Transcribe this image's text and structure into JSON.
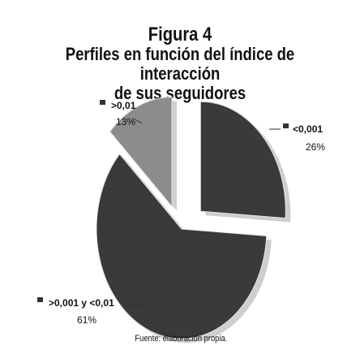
{
  "figure_label": "Figura 4",
  "title_lines": [
    "Perfiles en función del índice de interacción",
    "de sus seguidores"
  ],
  "source": "Fuente: elaboración propia.",
  "chart_data": {
    "type": "pie",
    "exploded": true,
    "shadow": true,
    "slices": [
      {
        "label": "<0,001",
        "value": 26,
        "value_label": "26%",
        "color": "#3a3a3a"
      },
      {
        "label": ">0,001 y <0,01",
        "value": 61,
        "value_label": "61%",
        "color": "#3a3a3a"
      },
      {
        "label": ">0,01",
        "value": 13,
        "value_label": "13%",
        "color": "#8c8c8c"
      }
    ]
  }
}
